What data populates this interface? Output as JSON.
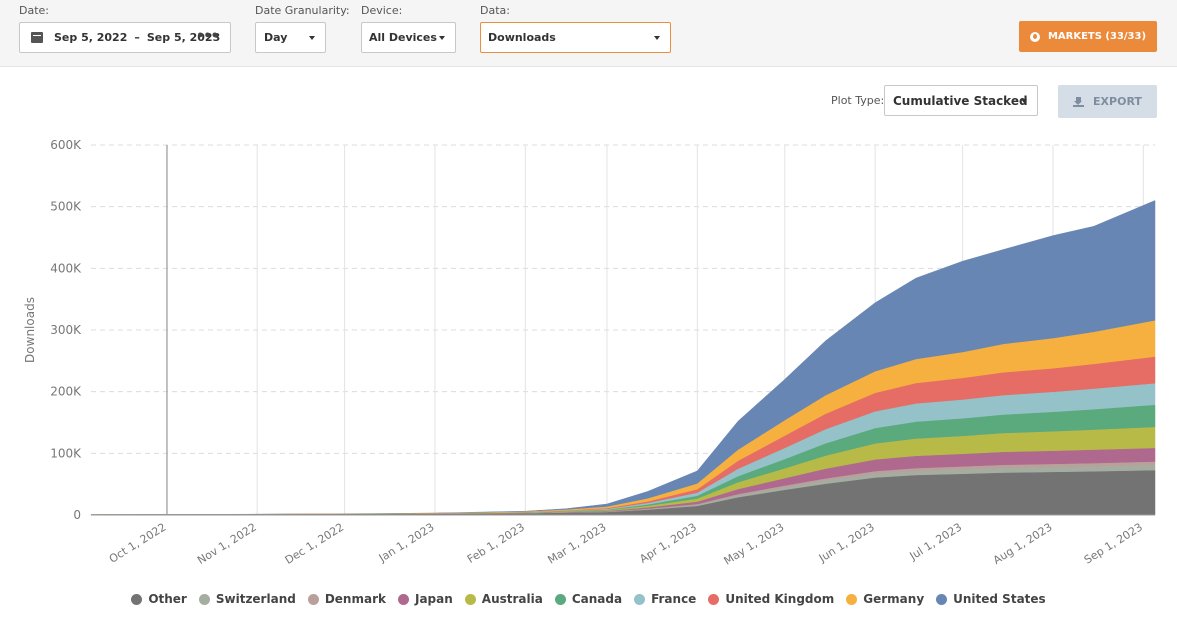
{
  "filters": {
    "date_label": "Date:",
    "date_start": "Sep 5, 2022",
    "date_sep": "–",
    "date_end": "Sep 5, 2023",
    "granularity_label": "Date Granularity:",
    "granularity_value": "Day",
    "device_label": "Device:",
    "device_value": "All Devices",
    "data_label": "Data:",
    "data_value": "Downloads",
    "markets_button": "MARKETS (33/33)"
  },
  "plot": {
    "plot_type_label": "Plot Type:",
    "plot_type_value": "Cumulative Stacked",
    "export_button": "EXPORT"
  },
  "colors": {
    "markets_button": "#ec8a3c",
    "data_select_border": "#e8903e",
    "export_button": "#d5dde6"
  },
  "chart_data": {
    "type": "area",
    "stacked": true,
    "ylabel": "Downloads",
    "ylim": [
      0,
      600000
    ],
    "yticks": [
      0,
      100000,
      200000,
      300000,
      400000,
      500000,
      600000
    ],
    "ytick_labels": [
      "0",
      "100K",
      "200K",
      "300K",
      "400K",
      "500K",
      "600K"
    ],
    "xlim": [
      "2022-09-05",
      "2023-09-05"
    ],
    "xtick_dates": [
      "2022-10-01",
      "2022-11-01",
      "2022-12-01",
      "2023-01-01",
      "2023-02-01",
      "2023-03-01",
      "2023-04-01",
      "2023-05-01",
      "2023-06-01",
      "2023-07-01",
      "2023-08-01",
      "2023-09-01"
    ],
    "xtick_labels": [
      "Oct 1, 2022",
      "Nov 1, 2022",
      "Dec 1, 2022",
      "Jan 1, 2023",
      "Feb 1, 2023",
      "Mar 1, 2023",
      "Apr 1, 2023",
      "May 1, 2023",
      "Jun 1, 2023",
      "Jul 1, 2023",
      "Aug 1, 2023",
      "Sep 1, 2023"
    ],
    "grid": true,
    "legend_position": "bottom",
    "x": [
      "2022-09-05",
      "2022-10-01",
      "2022-12-15",
      "2023-01-01",
      "2023-02-01",
      "2023-02-15",
      "2023-03-01",
      "2023-03-15",
      "2023-04-01",
      "2023-04-15",
      "2023-05-01",
      "2023-05-15",
      "2023-06-01",
      "2023-06-15",
      "2023-07-01",
      "2023-07-15",
      "2023-08-01",
      "2023-08-15",
      "2023-09-05"
    ],
    "series": [
      {
        "name": "Other",
        "color": "#737373",
        "values": [
          500,
          600,
          1000,
          1200,
          2000,
          3000,
          4000,
          8000,
          14000,
          28000,
          40000,
          50000,
          60000,
          64000,
          66000,
          68000,
          69000,
          70000,
          72000
        ]
      },
      {
        "name": "Switzerland",
        "color": "#a5aca0",
        "values": [
          0,
          0,
          100,
          100,
          200,
          300,
          500,
          1000,
          2000,
          3500,
          4500,
          5500,
          6500,
          7000,
          7500,
          7800,
          8000,
          8200,
          8500
        ]
      },
      {
        "name": "Denmark",
        "color": "#b9a09a",
        "values": [
          0,
          0,
          50,
          50,
          100,
          200,
          300,
          600,
          1000,
          1800,
          2500,
          3000,
          3800,
          4200,
          4500,
          4800,
          5000,
          5200,
          5500
        ]
      },
      {
        "name": "Japan",
        "color": "#b0698e",
        "values": [
          0,
          0,
          100,
          150,
          300,
          500,
          1000,
          2000,
          4000,
          8000,
          12000,
          16000,
          19000,
          20000,
          20500,
          21000,
          21500,
          21800,
          22000
        ]
      },
      {
        "name": "Australia",
        "color": "#b8ba48",
        "values": [
          0,
          0,
          150,
          200,
          400,
          700,
          1200,
          2500,
          5000,
          11000,
          16000,
          21000,
          26000,
          28000,
          29000,
          30500,
          31500,
          32500,
          34000
        ]
      },
      {
        "name": "Canada",
        "color": "#5aaa7e",
        "values": [
          0,
          0,
          100,
          150,
          300,
          600,
          1000,
          2200,
          4500,
          10000,
          15000,
          20000,
          25000,
          27500,
          28500,
          30000,
          31500,
          33000,
          36000
        ]
      },
      {
        "name": "France",
        "color": "#94c2c8",
        "values": [
          0,
          0,
          150,
          200,
          400,
          700,
          1200,
          2500,
          5000,
          12000,
          18000,
          23000,
          27000,
          29500,
          30500,
          31500,
          32500,
          33500,
          35000
        ]
      },
      {
        "name": "United Kingdom",
        "color": "#e66c66",
        "values": [
          0,
          0,
          150,
          200,
          400,
          700,
          1200,
          2500,
          5500,
          13000,
          20000,
          25000,
          30000,
          33000,
          35000,
          37000,
          38000,
          40000,
          43000
        ]
      },
      {
        "name": "Germany",
        "color": "#f5b03f",
        "values": [
          0,
          0,
          300,
          500,
          1000,
          1500,
          2500,
          5000,
          9500,
          18000,
          25000,
          30000,
          35000,
          39000,
          42000,
          46000,
          49000,
          52000,
          59000
        ]
      },
      {
        "name": "United States",
        "color": "#6886b4",
        "values": [
          0,
          0,
          400,
          500,
          1000,
          2000,
          5000,
          12000,
          21000,
          47000,
          67000,
          89000,
          112000,
          132000,
          148000,
          154000,
          167000,
          172000,
          195000
        ]
      }
    ]
  }
}
